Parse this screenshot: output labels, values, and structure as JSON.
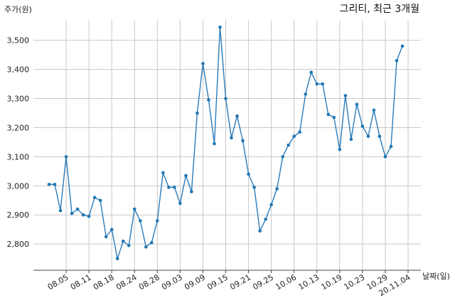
{
  "chart_data": {
    "type": "line",
    "title": "그리티, 최근 3개월",
    "ylabel": "주가(원)",
    "xlabel": "날짜(일)",
    "ylim": [
      2710,
      3570
    ],
    "yticks": [
      2800,
      2900,
      3000,
      3100,
      3200,
      3300,
      3400,
      3500
    ],
    "ytick_labels": [
      "2,800",
      "2,900",
      "3,000",
      "3,100",
      "3,200",
      "3,300",
      "3,400",
      "3,500"
    ],
    "xtick_labels": [
      "08.05",
      "08.11",
      "08.18",
      "08.24",
      "08.28",
      "09.03",
      "09.09",
      "09.15",
      "09.21",
      "09.25",
      "10.06",
      "10.13",
      "10.19",
      "10.23",
      "10.29",
      "20.11.04"
    ],
    "xtick_index": [
      3,
      7,
      11,
      15,
      19,
      23,
      27,
      31,
      35,
      39,
      43,
      47,
      51,
      55,
      59,
      63
    ],
    "grid": true,
    "series": [
      {
        "color": "#2b7bb9",
        "values": [
          3005,
          3005,
          2915,
          3100,
          2905,
          2920,
          2900,
          2895,
          2960,
          2950,
          2825,
          2850,
          2750,
          2810,
          2795,
          2920,
          2880,
          2790,
          2805,
          2880,
          3045,
          2995,
          2995,
          2940,
          3035,
          2980,
          3250,
          3420,
          3295,
          3145,
          3545,
          3300,
          3165,
          3240,
          3155,
          3040,
          2995,
          2845,
          2885,
          2935,
          2990,
          3100,
          3140,
          3170,
          3185,
          3315,
          3390,
          3350,
          3350,
          3245,
          3235,
          3125,
          3310,
          3160,
          3280,
          3205,
          3170,
          3260,
          3170,
          3100,
          3135,
          3430,
          3480
        ]
      }
    ]
  }
}
